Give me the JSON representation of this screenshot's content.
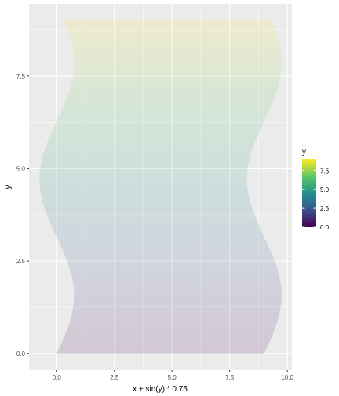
{
  "chart_data": {
    "type": "area",
    "description_values": {
      "shape": "ribbon between left edge x = sin(y)*0.75 and right edge x = 9 + sin(y)*0.75, filled by y value",
      "y_range": [
        0,
        9
      ],
      "x_offset_right": 9,
      "amplitude": 0.75
    },
    "xlabel": "x + sin(y) * 0.75",
    "ylabel": "y",
    "xlim": [
      -1.2,
      10.2
    ],
    "ylim": [
      -0.45,
      9.45
    ],
    "x_ticks": [
      0.0,
      2.5,
      5.0,
      7.5,
      10.0
    ],
    "x_tick_labels": [
      "0.0",
      "2.5",
      "5.0",
      "7.5",
      "10.0"
    ],
    "y_ticks": [
      0.0,
      2.5,
      5.0,
      7.5
    ],
    "y_tick_labels": [
      "0.0",
      "2.5",
      "5.0",
      "7.5"
    ],
    "grid": true,
    "fill_alpha": 0.15,
    "colormap": "viridis",
    "legend": {
      "title": "y",
      "position": "right",
      "ticks": [
        0.0,
        2.5,
        5.0,
        7.5
      ],
      "tick_labels": [
        "0.0",
        "2.5",
        "5.0",
        "7.5"
      ],
      "range": [
        0,
        9
      ]
    }
  },
  "colors": {
    "panel_background": "#ebebeb",
    "grid_major": "#ffffff",
    "viridis_stops": [
      "#440154",
      "#3b528b",
      "#21908c",
      "#5dc863",
      "#fde725"
    ]
  }
}
